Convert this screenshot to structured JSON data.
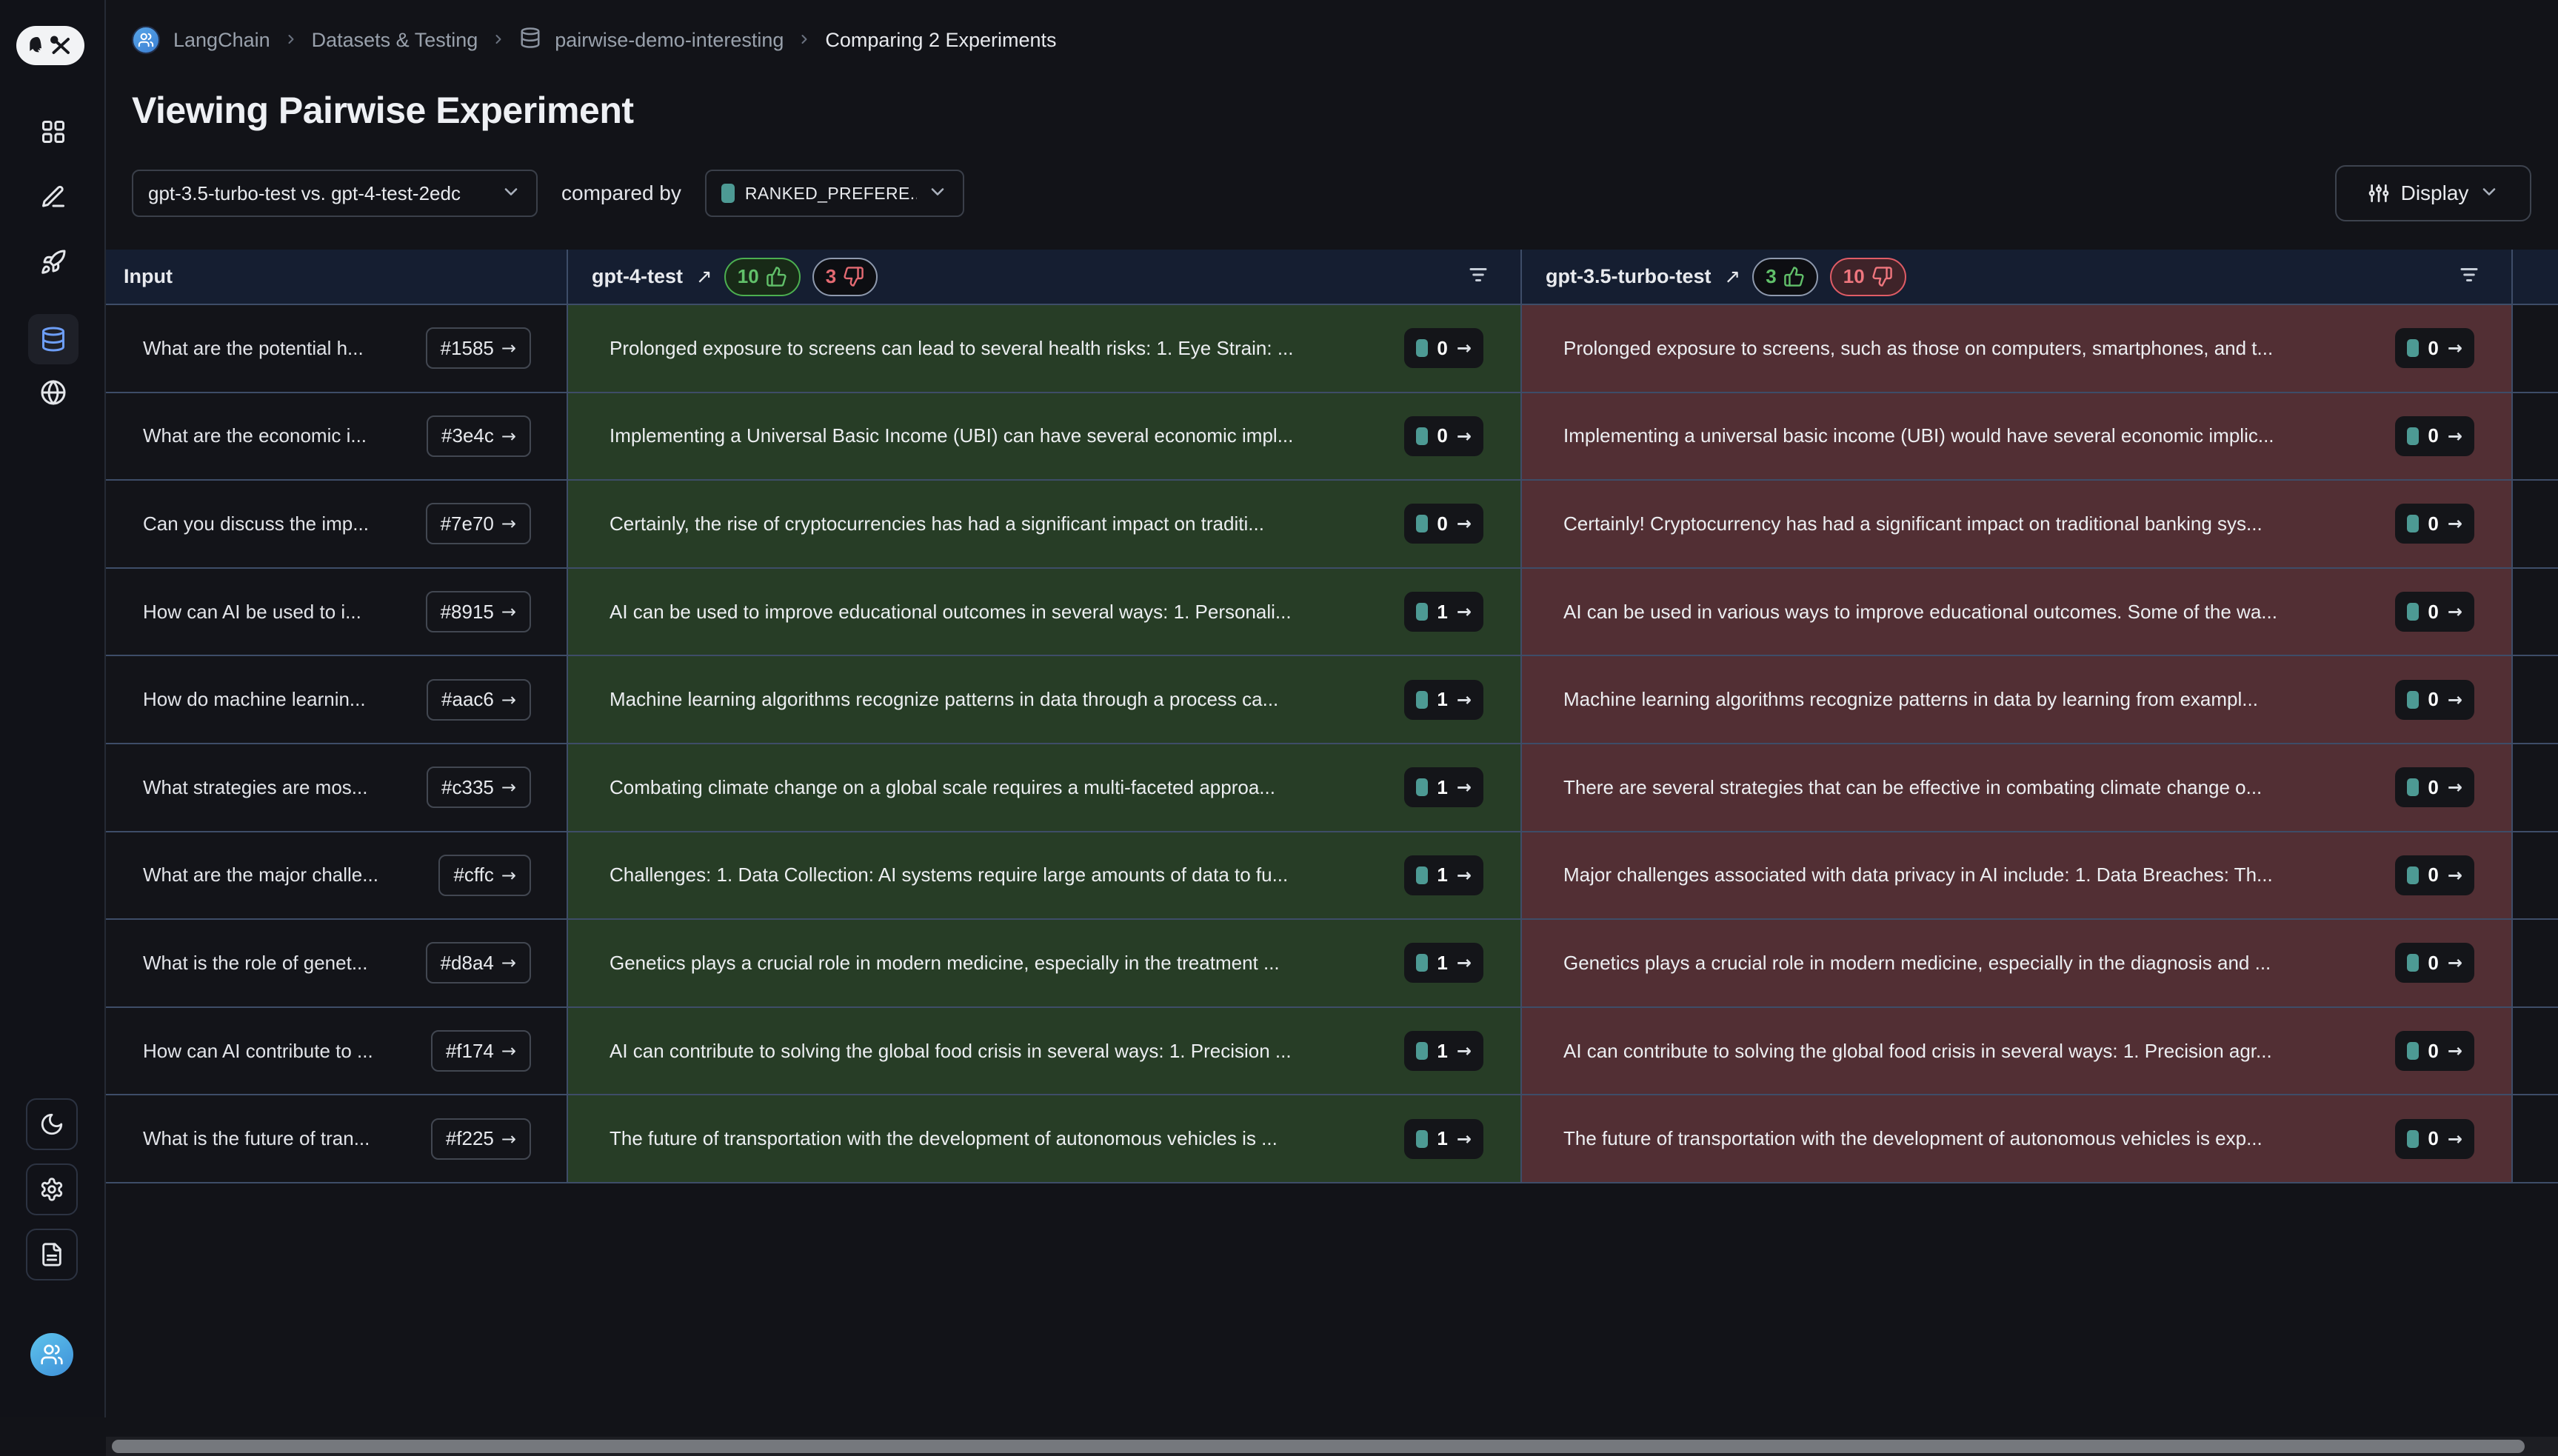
{
  "breadcrumb": {
    "items": [
      {
        "label": "LangChain"
      },
      {
        "label": "Datasets & Testing"
      },
      {
        "label": "pairwise-demo-interesting"
      },
      {
        "label": "Comparing 2 Experiments"
      }
    ]
  },
  "page": {
    "title": "Viewing Pairwise Experiment"
  },
  "controls": {
    "experiment_select_value": "gpt-3.5-turbo-test vs. gpt-4-test-2edc",
    "compared_by_label": "compared by",
    "feedback_select_value": "RANKED_PREFERE...",
    "display_button_label": "Display"
  },
  "sidebar": {
    "icons": [
      "grid-icon",
      "pencil-icon",
      "rocket-icon",
      "database-icon",
      "globe-icon"
    ],
    "bottom_icons": [
      "moon-icon",
      "gear-icon",
      "document-icon"
    ],
    "active_item": "database-icon"
  },
  "table": {
    "input_header": "Input",
    "experiments": [
      {
        "name": "gpt-4-test",
        "thumbs_up": 10,
        "thumbs_down": 3
      },
      {
        "name": "gpt-3.5-turbo-test",
        "thumbs_up": 3,
        "thumbs_down": 10
      }
    ],
    "rows": [
      {
        "input": {
          "text": "What are the potential h...",
          "ref": "#1585"
        },
        "a": {
          "text": "Prolonged exposure to screens can lead to several health risks: 1. Eye Strain: ...",
          "score": 0
        },
        "b": {
          "text": "Prolonged exposure to screens, such as those on computers, smartphones, and t...",
          "score": 0
        }
      },
      {
        "input": {
          "text": "What are the economic i...",
          "ref": "#3e4c"
        },
        "a": {
          "text": "Implementing a Universal Basic Income (UBI) can have several economic impl...",
          "score": 0
        },
        "b": {
          "text": "Implementing a universal basic income (UBI) would have several economic implic...",
          "score": 0
        }
      },
      {
        "input": {
          "text": "Can you discuss the imp...",
          "ref": "#7e70"
        },
        "a": {
          "text": "Certainly, the rise of cryptocurrencies has had a significant impact on traditi...",
          "score": 0
        },
        "b": {
          "text": "Certainly! Cryptocurrency has had a significant impact on traditional banking sys...",
          "score": 0
        }
      },
      {
        "input": {
          "text": "How can AI be used to i...",
          "ref": "#8915"
        },
        "a": {
          "text": "AI can be used to improve educational outcomes in several ways: 1. Personali...",
          "score": 1
        },
        "b": {
          "text": "AI can be used in various ways to improve educational outcomes. Some of the wa...",
          "score": 0
        }
      },
      {
        "input": {
          "text": "How do machine learnin...",
          "ref": "#aac6"
        },
        "a": {
          "text": "Machine learning algorithms recognize patterns in data through a process ca...",
          "score": 1
        },
        "b": {
          "text": "Machine learning algorithms recognize patterns in data by learning from exampl...",
          "score": 0
        }
      },
      {
        "input": {
          "text": "What strategies are mos...",
          "ref": "#c335"
        },
        "a": {
          "text": "Combating climate change on a global scale requires a multi-faceted approa...",
          "score": 1
        },
        "b": {
          "text": "There are several strategies that can be effective in combating climate change o...",
          "score": 0
        }
      },
      {
        "input": {
          "text": "What are the major challe...",
          "ref": "#cffc"
        },
        "a": {
          "text": "Challenges: 1. Data Collection: AI systems require large amounts of data to fu...",
          "score": 1
        },
        "b": {
          "text": "Major challenges associated with data privacy in AI include: 1. Data Breaches: Th...",
          "score": 0
        }
      },
      {
        "input": {
          "text": "What is the role of genet...",
          "ref": "#d8a4"
        },
        "a": {
          "text": "Genetics plays a crucial role in modern medicine, especially in the treatment ...",
          "score": 1
        },
        "b": {
          "text": "Genetics plays a crucial role in modern medicine, especially in the diagnosis and ...",
          "score": 0
        }
      },
      {
        "input": {
          "text": "How can AI contribute to ...",
          "ref": "#f174"
        },
        "a": {
          "text": "AI can contribute to solving the global food crisis in several ways: 1. Precision ...",
          "score": 1
        },
        "b": {
          "text": "AI can contribute to solving the global food crisis in several ways: 1. Precision agr...",
          "score": 0
        }
      },
      {
        "input": {
          "text": "What is the future of tran...",
          "ref": "#f225"
        },
        "a": {
          "text": "The future of transportation with the development of autonomous vehicles is ...",
          "score": 1
        },
        "b": {
          "text": "The future of transportation with the development of autonomous vehicles is exp...",
          "score": 0
        }
      }
    ]
  },
  "colors": {
    "header_bg": "#151E31",
    "win_cell_bg": "#273D26",
    "lose_cell_bg": "#522F34",
    "teal_accent": "#4d9a94",
    "win_badge_border": "#4caf50",
    "lose_badge_border": "#e05c66",
    "active_icon_blue": "#6d9ef7",
    "separator": "#3E4D68"
  }
}
